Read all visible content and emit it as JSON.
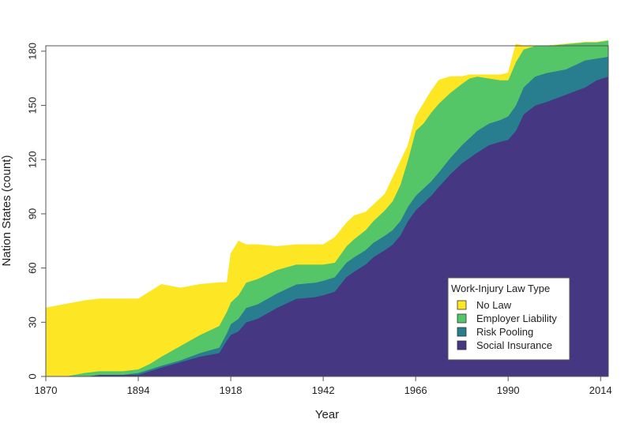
{
  "chart_data": {
    "type": "area",
    "stacked": true,
    "title": "",
    "xlabel": "Year",
    "ylabel": "Nation States (count)",
    "xlim": [
      1870,
      2016
    ],
    "ylim": [
      0,
      183
    ],
    "xticks": [
      1870,
      1894,
      1918,
      1942,
      1966,
      1990,
      2014
    ],
    "yticks": [
      0,
      30,
      60,
      90,
      120,
      150,
      180
    ],
    "grid": false,
    "legend": {
      "title": "Work-Injury Law Type",
      "position": "bottom-right",
      "entries": [
        "No Law",
        "Employer Liability",
        "Risk Pooling",
        "Social Insurance"
      ]
    },
    "x": [
      1870,
      1875,
      1880,
      1884,
      1890,
      1894,
      1897,
      1900,
      1905,
      1910,
      1915,
      1917,
      1918,
      1920,
      1922,
      1925,
      1930,
      1935,
      1940,
      1942,
      1945,
      1948,
      1950,
      1953,
      1955,
      1958,
      1960,
      1962,
      1964,
      1966,
      1968,
      1970,
      1972,
      1975,
      1978,
      1980,
      1982,
      1985,
      1988,
      1990,
      1992,
      1994,
      1997,
      2000,
      2005,
      2010,
      2013,
      2016
    ],
    "series": [
      {
        "name": "Social Insurance",
        "color": "#453781",
        "values": [
          0,
          0,
          0,
          1,
          1,
          1,
          3,
          5,
          8,
          11,
          13,
          20,
          23,
          25,
          30,
          32,
          38,
          43,
          44,
          45,
          47,
          55,
          58,
          62,
          66,
          70,
          73,
          78,
          86,
          92,
          96,
          100,
          105,
          112,
          118,
          121,
          124,
          128,
          130,
          131,
          136,
          145,
          150,
          152,
          156,
          160,
          164,
          166
        ]
      },
      {
        "name": "Risk Pooling",
        "color": "#287d8e",
        "values": [
          0,
          0,
          0,
          0,
          0,
          1,
          1,
          1,
          1,
          2,
          3,
          4,
          6,
          7,
          8,
          8,
          8,
          8,
          8,
          8,
          8,
          8,
          8,
          8,
          8,
          8,
          8,
          8,
          8,
          8,
          8,
          8,
          8,
          9,
          10,
          11,
          12,
          12,
          12,
          13,
          14,
          15,
          16,
          16,
          14,
          15,
          12,
          11
        ]
      },
      {
        "name": "Employer Liability",
        "color": "#55c667",
        "values": [
          0,
          0,
          2,
          2,
          2,
          2,
          3,
          5,
          8,
          10,
          12,
          12,
          12,
          13,
          14,
          14,
          13,
          11,
          10,
          9,
          8,
          9,
          10,
          11,
          12,
          14,
          16,
          20,
          26,
          36,
          36,
          38,
          38,
          36,
          34,
          33,
          30,
          25,
          22,
          20,
          24,
          21,
          17,
          15,
          14,
          10,
          9,
          9
        ]
      },
      {
        "name": "No Law",
        "color": "#fde725",
        "values": [
          38,
          40,
          40,
          40,
          40,
          39,
          40,
          40,
          32,
          28,
          24,
          16,
          27,
          30,
          21,
          19,
          13,
          11,
          11,
          11,
          14,
          13,
          13,
          10,
          9,
          9,
          13,
          13,
          8,
          8,
          11,
          12,
          13,
          9,
          4,
          2,
          1,
          2,
          3,
          4,
          10,
          2,
          0,
          0,
          0,
          0,
          0,
          0
        ]
      }
    ]
  }
}
